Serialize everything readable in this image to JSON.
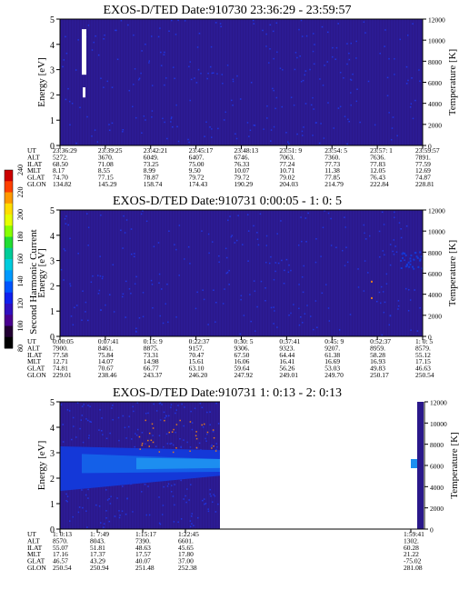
{
  "colors": {
    "background": "#2a188a",
    "stripe": "#3222a8",
    "speck": "#2035e0",
    "band_light": "#1d8ef0",
    "band_mid": "#1460e8",
    "band_dark": "#1438d8",
    "hot": "#ffffff",
    "dot": "#e07a20"
  },
  "colorbar": {
    "label": "Second Harmonic Current",
    "ticks": [
      "240",
      "220",
      "200",
      "180",
      "160",
      "140",
      "120",
      "100",
      "80"
    ],
    "colors": [
      "#cc0000",
      "#ff4000",
      "#ff9900",
      "#ffdd00",
      "#e6ff00",
      "#88ff00",
      "#22dd33",
      "#00cc99",
      "#00ccdd",
      "#0099ff",
      "#0055ff",
      "#1020ee",
      "#3010c0",
      "#4a0090",
      "#220033",
      "#000000"
    ]
  },
  "chart_data": [
    {
      "type": "heatmap",
      "title": "EXOS-D/TED   Date:910730  23:36:29 - 23:59:57",
      "ylabel": "Energy [eV]",
      "y2label": "Temperature [K]",
      "ylim": [
        0,
        5
      ],
      "y2lim": [
        0,
        12000
      ],
      "y_ticks": [
        "0",
        "1",
        "2",
        "3",
        "4",
        "5"
      ],
      "y2_ticks": [
        "0",
        "2000",
        "4000",
        "6000",
        "8000",
        "10000",
        "12000"
      ],
      "ephemeris": {
        "labels": [
          "UT",
          "ALT",
          "ILAT",
          "MLT",
          "GLAT",
          "GLON"
        ],
        "columns": [
          [
            "23:36:29",
            "5272.",
            "68.50",
            "8.17",
            "74.70",
            "134.82"
          ],
          [
            "23:39:25",
            "3670.",
            "71.08",
            "8.55",
            "77.15",
            "145.29"
          ],
          [
            "23:42:21",
            "6049.",
            "73.25",
            "8.99",
            "78.87",
            "158.74"
          ],
          [
            "23:45:17",
            "6407.",
            "75.00",
            "9.50",
            "79.72",
            "174.43"
          ],
          [
            "23:48:13",
            "6746.",
            "76.33",
            "10.07",
            "79.72",
            "190.29"
          ],
          [
            "23:51: 9",
            "7063.",
            "77.24",
            "10.71",
            "79.02",
            "204.03"
          ],
          [
            "23:54: 5",
            "7360.",
            "77.73",
            "11.38",
            "77.85",
            "214.79"
          ],
          [
            "23:57: 1",
            "7636.",
            "77.83",
            "12.05",
            "76.43",
            "222.84"
          ],
          [
            "23:59:57",
            "7891.",
            "77.59",
            "12.69",
            "74.87",
            "228.81"
          ]
        ]
      }
    },
    {
      "type": "heatmap",
      "title": "EXOS-D/TED   Date:910731  0:00:05 - 1: 0: 5",
      "ylabel": "Energy [eV]",
      "y2label": "Temperature [K]",
      "ylim": [
        0,
        5
      ],
      "y2lim": [
        0,
        12000
      ],
      "y_ticks": [
        "0",
        "1",
        "2",
        "3",
        "4",
        "5"
      ],
      "y2_ticks": [
        "0",
        "2000",
        "4000",
        "6000",
        "8000",
        "10000",
        "12000"
      ],
      "ephemeris": {
        "labels": [
          "UT",
          "ALT",
          "ILAT",
          "MLT",
          "GLAT",
          "GLON"
        ],
        "columns": [
          [
            "0:00:05",
            "7900.",
            "77.58",
            "12.71",
            "74.81",
            "229.01"
          ],
          [
            "0:07:41",
            "8461.",
            "75.84",
            "14.07",
            "70.67",
            "238.46"
          ],
          [
            "0:15: 9",
            "8875.",
            "73.31",
            "14.98",
            "66.77",
            "243.37"
          ],
          [
            "0:22:37",
            "9157.",
            "70.47",
            "15.61",
            "63.10",
            "246.20"
          ],
          [
            "0:30: 5",
            "9306.",
            "67.50",
            "16.06",
            "59.64",
            "247.92"
          ],
          [
            "0:37:41",
            "9323.",
            "64.44",
            "16.41",
            "56.26",
            "249.01"
          ],
          [
            "0:45: 9",
            "9207.",
            "61.38",
            "16.69",
            "53.03",
            "249.70"
          ],
          [
            "0:52:37",
            "8959.",
            "58.28",
            "16.93",
            "49.83",
            "250.17"
          ],
          [
            "1: 0: 5",
            "8579.",
            "55.12",
            "17.15",
            "46.63",
            "250.54"
          ]
        ]
      }
    },
    {
      "type": "heatmap",
      "title": "EXOS-D/TED   Date:910731  1: 0:13 - 2: 0:13",
      "ylabel": "Energy [eV]",
      "y2label": "Temperature [K]",
      "ylim": [
        0,
        5
      ],
      "y2lim": [
        0,
        12000
      ],
      "y_ticks": [
        "0",
        "1",
        "2",
        "3",
        "4",
        "5"
      ],
      "y2_ticks": [
        "0",
        "2000",
        "4000",
        "6000",
        "8000",
        "10000",
        "12000"
      ],
      "ephemeris": {
        "labels": [
          "UT",
          "ALT",
          "ILAT",
          "MLT",
          "GLAT",
          "GLON"
        ],
        "columns": [
          [
            "1: 0:13",
            "8570.",
            "55.07",
            "17.16",
            "46.57",
            "250.54"
          ],
          [
            "1: 7:49",
            "8043.",
            "51.81",
            "17.37",
            "43.29",
            "250.94"
          ],
          [
            "1:15:17",
            "7390.",
            "48.63",
            "17.57",
            "40.07",
            "251.48"
          ],
          [
            "1:22:45",
            "6601.",
            "45.65",
            "17.80",
            "37.00",
            "252.38"
          ],
          [
            "1:59:41",
            "1302.",
            "60.28",
            "21.22",
            "-75.02",
            "281.08"
          ]
        ]
      }
    }
  ]
}
